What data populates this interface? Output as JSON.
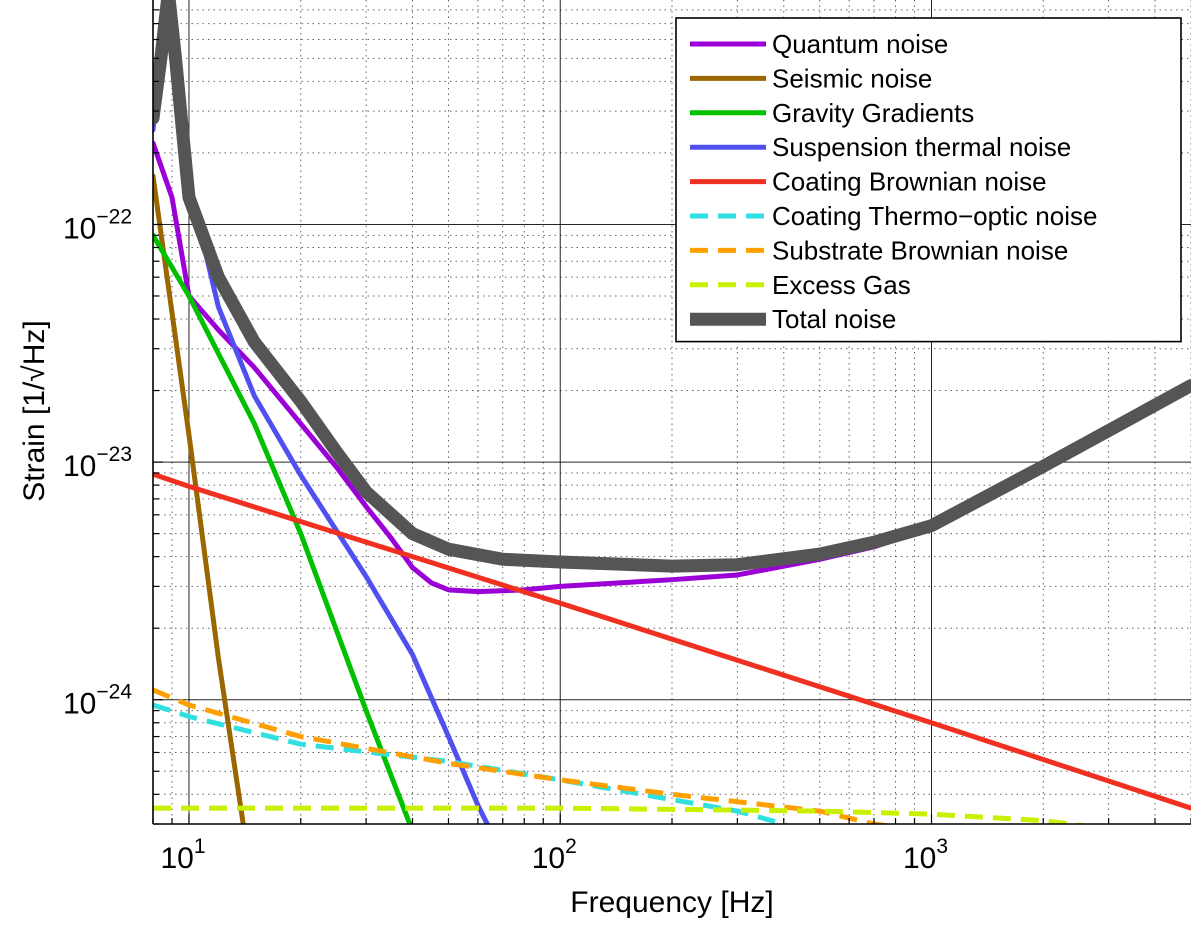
{
  "chart_data": {
    "type": "line",
    "title": "",
    "xlabel": "Frequency [Hz]",
    "ylabel": "Strain [1/√Hz]",
    "xscale": "log",
    "yscale": "log",
    "xlim": [
      8,
      5000
    ],
    "ylim": [
      3e-25,
      8.8e-22
    ],
    "grid": true,
    "legend_position": "top-right",
    "x_ticks": [
      {
        "value": 10,
        "base": "10",
        "exp": "1"
      },
      {
        "value": 100,
        "base": "10",
        "exp": "2"
      },
      {
        "value": 1000,
        "base": "10",
        "exp": "3"
      }
    ],
    "y_ticks": [
      {
        "value": 1e-24,
        "base": "10",
        "exp": "−24"
      },
      {
        "value": 1e-23,
        "base": "10",
        "exp": "−23"
      },
      {
        "value": 1e-22,
        "base": "10",
        "exp": "−22"
      }
    ],
    "series": [
      {
        "name": "Quantum noise",
        "color": "#9B00D6",
        "dash": "solid",
        "x": [
          8,
          9,
          10,
          12,
          15,
          20,
          25,
          30,
          35,
          40,
          45,
          50,
          60,
          80,
          100,
          200,
          300,
          500,
          700,
          1000,
          2000,
          5000
        ],
        "y": [
          2.2e-22,
          1.3e-22,
          5e-23,
          3.6e-23,
          2.5e-23,
          1.45e-23,
          9.5e-24,
          6.5e-24,
          4.8e-24,
          3.6e-24,
          3.1e-24,
          2.9e-24,
          2.85e-24,
          2.9e-24,
          3e-24,
          3.2e-24,
          3.35e-24,
          3.9e-24,
          4.4e-24,
          5.3e-24,
          9.6e-24,
          2.1e-23
        ]
      },
      {
        "name": "Seismic noise",
        "color": "#996600",
        "dash": "solid",
        "x": [
          8,
          10,
          12,
          14,
          14.6
        ],
        "y": [
          1.6e-22,
          1.3e-23,
          1.5e-24,
          3e-25,
          2e-25
        ]
      },
      {
        "name": "Gravity Gradients",
        "color": "#00C000",
        "dash": "solid",
        "x": [
          8,
          10,
          15,
          20,
          30,
          40
        ],
        "y": [
          9e-23,
          5e-23,
          1.45e-23,
          5e-24,
          9e-25,
          2.8e-25
        ]
      },
      {
        "name": "Suspension thermal noise",
        "color": "#5050F0",
        "dash": "solid",
        "x": [
          8,
          8.5,
          9,
          10,
          12,
          15,
          20,
          30,
          40,
          50,
          60,
          65
        ],
        "y": [
          2.5e-22,
          6e-22,
          8e-22,
          1.5e-22,
          4.5e-23,
          1.9e-23,
          8.8e-24,
          3.3e-24,
          1.55e-24,
          7e-25,
          3.6e-25,
          2.8e-25
        ]
      },
      {
        "name": "Coating Brownian noise",
        "color": "#F03020",
        "dash": "solid",
        "x": [
          8,
          10,
          40,
          100,
          1000,
          5000
        ],
        "y": [
          8.9e-24,
          7.9e-24,
          4e-24,
          2.55e-24,
          8e-25,
          3.5e-25
        ]
      },
      {
        "name": "Coating Thermo−optic noise",
        "color": "#30E0E0",
        "dash": "dashed",
        "x": [
          8,
          10,
          20,
          50,
          100,
          200,
          300,
          400,
          450
        ],
        "y": [
          9.5e-25,
          8.5e-25,
          6.5e-25,
          5.5e-25,
          4.6e-25,
          3.8e-25,
          3.4e-25,
          3e-25,
          2.7e-25
        ]
      },
      {
        "name": "Substrate Brownian noise",
        "color": "#FFA000",
        "dash": "dashed",
        "x": [
          8,
          10,
          20,
          50,
          100,
          200,
          500,
          700,
          1000
        ],
        "y": [
          1.1e-24,
          9.5e-25,
          7e-25,
          5.4e-25,
          4.6e-25,
          4e-25,
          3.4e-25,
          3e-25,
          2.8e-25
        ]
      },
      {
        "name": "Excess Gas",
        "color": "#C8F000",
        "dash": "dashed",
        "x": [
          8,
          100,
          500,
          1000,
          2000,
          2800
        ],
        "y": [
          3.5e-25,
          3.5e-25,
          3.4e-25,
          3.3e-25,
          3.1e-25,
          2.9e-25
        ]
      },
      {
        "name": "Total noise",
        "color": "#555555",
        "dash": "solid",
        "width": "thick",
        "x": [
          8,
          8.4,
          8.8,
          9.2,
          9.6,
          10,
          12,
          15,
          20,
          25,
          30,
          40,
          50,
          70,
          100,
          200,
          300,
          500,
          700,
          1000,
          2000,
          5000
        ],
        "y": [
          2.8e-22,
          5e-22,
          9.5e-22,
          5e-22,
          2.5e-22,
          1.3e-22,
          6e-23,
          3.2e-23,
          1.8e-23,
          1.1e-23,
          7.5e-24,
          5e-24,
          4.3e-24,
          3.9e-24,
          3.8e-24,
          3.65e-24,
          3.7e-24,
          4.1e-24,
          4.6e-24,
          5.4e-24,
          9.6e-24,
          2.1e-23
        ]
      }
    ]
  }
}
